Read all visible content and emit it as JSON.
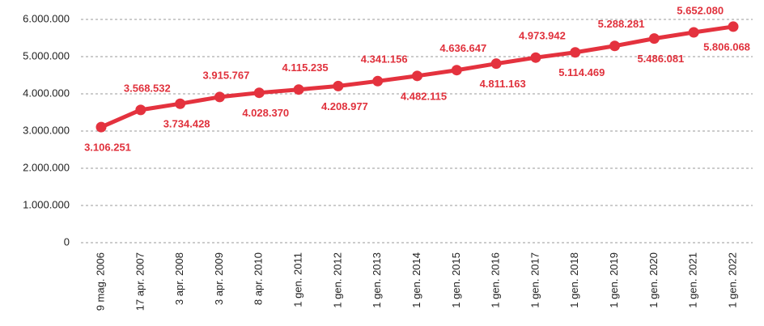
{
  "chart_data": {
    "type": "line",
    "categories": [
      "9 mag. 2006",
      "17 apr. 2007",
      "3 apr. 2008",
      "3 apr. 2009",
      "8 apr. 2010",
      "1 gen. 2011",
      "1 gen. 2012",
      "1 gen. 2013",
      "1 gen. 2014",
      "1 gen. 2015",
      "1 gen. 2016",
      "1 gen. 2017",
      "1 gen. 2018",
      "1 gen. 2019",
      "1 gen. 2020",
      "1 gen. 2021",
      "1 gen. 2022"
    ],
    "series": [
      {
        "color": "#e4323e",
        "values": [
          3106251,
          3568532,
          3734428,
          3915767,
          4028370,
          4115235,
          4208977,
          4341156,
          4482115,
          4636647,
          4811163,
          4973942,
          5114469,
          5288281,
          5486081,
          5652080,
          5806068
        ],
        "value_labels": [
          "3.106.251",
          "3.568.532",
          "3.734.428",
          "3.915.767",
          "4.028.370",
          "4.115.235",
          "4.208.977",
          "4.341.156",
          "4.482.115",
          "4.636.647",
          "4.811.163",
          "4.973.942",
          "5.114.469",
          "5.288.281",
          "5.486.081",
          "5.652.080",
          "5.806.068"
        ]
      }
    ],
    "ylim": [
      0,
      6000000
    ],
    "yticks": [
      0,
      {
        "value": 1000000,
        "label": "1.000.000"
      },
      {
        "value": 2000000,
        "label": "2.000.000"
      },
      {
        "value": 3000000,
        "label": "3.000.000"
      },
      {
        "value": 4000000,
        "label": "4.000.000"
      },
      {
        "value": 5000000,
        "label": "5.000.000"
      },
      {
        "value": 6000000,
        "label": "6.000.000"
      }
    ],
    "grid": true
  }
}
